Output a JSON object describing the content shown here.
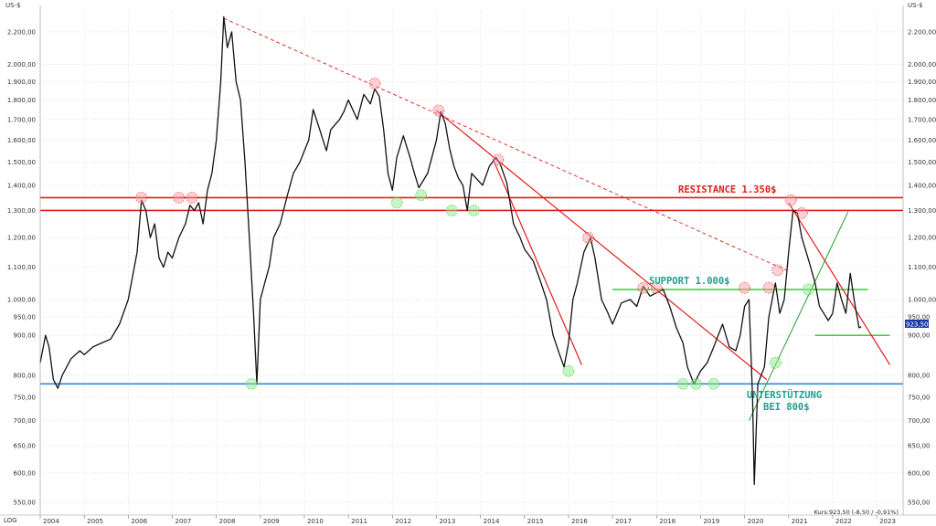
{
  "chart_data": {
    "type": "line",
    "scale": "log",
    "unit_left": "US-$",
    "unit_right": "US-$",
    "scale_label": "LOG",
    "grid": true,
    "ylim": [
      530,
      2340
    ],
    "xlim": [
      2004.0,
      2023.6
    ],
    "y_ticks": [
      {
        "v": 550,
        "label": "550,00"
      },
      {
        "v": 600,
        "label": "600,00"
      },
      {
        "v": 650,
        "label": "650,00"
      },
      {
        "v": 700,
        "label": "700,00"
      },
      {
        "v": 750,
        "label": "750,00"
      },
      {
        "v": 800,
        "label": "800,00"
      },
      {
        "v": 900,
        "label": "900,00"
      },
      {
        "v": 950,
        "label": "950,00"
      },
      {
        "v": 1000,
        "label": "1.000,00"
      },
      {
        "v": 1100,
        "label": "1.100,00"
      },
      {
        "v": 1200,
        "label": "1.200,00"
      },
      {
        "v": 1300,
        "label": "1.300,00"
      },
      {
        "v": 1400,
        "label": "1.400,00"
      },
      {
        "v": 1500,
        "label": "1.500,00"
      },
      {
        "v": 1600,
        "label": "1.600,00"
      },
      {
        "v": 1700,
        "label": "1.700,00"
      },
      {
        "v": 1800,
        "label": "1.800,00"
      },
      {
        "v": 1900,
        "label": "1.900,00"
      },
      {
        "v": 2000,
        "label": "2.000,00"
      },
      {
        "v": 2200,
        "label": "2.200,00"
      }
    ],
    "x_ticks": [
      "2004",
      "2005",
      "2006",
      "2007",
      "2008",
      "2009",
      "2010",
      "2011",
      "2012",
      "2013",
      "2014",
      "2015",
      "2016",
      "2017",
      "2018",
      "2019",
      "2020",
      "2021",
      "2022",
      "2023"
    ],
    "series": [
      {
        "points": [
          [
            2004.0,
            830
          ],
          [
            2004.12,
            900
          ],
          [
            2004.2,
            870
          ],
          [
            2004.3,
            790
          ],
          [
            2004.4,
            770
          ],
          [
            2004.5,
            800
          ],
          [
            2004.7,
            840
          ],
          [
            2004.9,
            860
          ],
          [
            2005.0,
            850
          ],
          [
            2005.2,
            870
          ],
          [
            2005.4,
            880
          ],
          [
            2005.6,
            890
          ],
          [
            2005.8,
            930
          ],
          [
            2006.0,
            1000
          ],
          [
            2006.2,
            1150
          ],
          [
            2006.3,
            1340
          ],
          [
            2006.4,
            1300
          ],
          [
            2006.5,
            1200
          ],
          [
            2006.6,
            1250
          ],
          [
            2006.7,
            1130
          ],
          [
            2006.8,
            1100
          ],
          [
            2006.9,
            1150
          ],
          [
            2007.0,
            1130
          ],
          [
            2007.15,
            1200
          ],
          [
            2007.3,
            1250
          ],
          [
            2007.4,
            1320
          ],
          [
            2007.5,
            1300
          ],
          [
            2007.6,
            1330
          ],
          [
            2007.7,
            1250
          ],
          [
            2007.8,
            1380
          ],
          [
            2007.9,
            1450
          ],
          [
            2008.0,
            1600
          ],
          [
            2008.1,
            1900
          ],
          [
            2008.17,
            2300
          ],
          [
            2008.25,
            2100
          ],
          [
            2008.35,
            2200
          ],
          [
            2008.45,
            1900
          ],
          [
            2008.55,
            1800
          ],
          [
            2008.65,
            1500
          ],
          [
            2008.75,
            1200
          ],
          [
            2008.85,
            950
          ],
          [
            2008.92,
            780
          ],
          [
            2009.0,
            1000
          ],
          [
            2009.1,
            1050
          ],
          [
            2009.2,
            1100
          ],
          [
            2009.3,
            1200
          ],
          [
            2009.45,
            1250
          ],
          [
            2009.6,
            1350
          ],
          [
            2009.75,
            1450
          ],
          [
            2009.9,
            1500
          ],
          [
            2010.0,
            1550
          ],
          [
            2010.1,
            1600
          ],
          [
            2010.2,
            1750
          ],
          [
            2010.35,
            1650
          ],
          [
            2010.5,
            1550
          ],
          [
            2010.6,
            1650
          ],
          [
            2010.8,
            1700
          ],
          [
            2010.9,
            1740
          ],
          [
            2011.0,
            1800
          ],
          [
            2011.2,
            1700
          ],
          [
            2011.35,
            1830
          ],
          [
            2011.5,
            1780
          ],
          [
            2011.6,
            1860
          ],
          [
            2011.7,
            1820
          ],
          [
            2011.8,
            1650
          ],
          [
            2011.9,
            1450
          ],
          [
            2012.0,
            1380
          ],
          [
            2012.1,
            1520
          ],
          [
            2012.25,
            1620
          ],
          [
            2012.4,
            1520
          ],
          [
            2012.5,
            1450
          ],
          [
            2012.6,
            1390
          ],
          [
            2012.8,
            1450
          ],
          [
            2013.0,
            1600
          ],
          [
            2013.1,
            1740
          ],
          [
            2013.2,
            1680
          ],
          [
            2013.3,
            1560
          ],
          [
            2013.4,
            1480
          ],
          [
            2013.5,
            1430
          ],
          [
            2013.6,
            1400
          ],
          [
            2013.7,
            1300
          ],
          [
            2013.8,
            1450
          ],
          [
            2013.95,
            1420
          ],
          [
            2014.05,
            1400
          ],
          [
            2014.2,
            1480
          ],
          [
            2014.35,
            1520
          ],
          [
            2014.45,
            1490
          ],
          [
            2014.6,
            1410
          ],
          [
            2014.75,
            1250
          ],
          [
            2014.9,
            1200
          ],
          [
            2015.0,
            1160
          ],
          [
            2015.2,
            1120
          ],
          [
            2015.35,
            1060
          ],
          [
            2015.5,
            1000
          ],
          [
            2015.65,
            900
          ],
          [
            2015.8,
            850
          ],
          [
            2015.9,
            820
          ],
          [
            2016.0,
            880
          ],
          [
            2016.1,
            1000
          ],
          [
            2016.2,
            1050
          ],
          [
            2016.35,
            1150
          ],
          [
            2016.5,
            1200
          ],
          [
            2016.6,
            1130
          ],
          [
            2016.75,
            1000
          ],
          [
            2016.9,
            960
          ],
          [
            2017.0,
            930
          ],
          [
            2017.2,
            990
          ],
          [
            2017.4,
            1000
          ],
          [
            2017.55,
            980
          ],
          [
            2017.7,
            1040
          ],
          [
            2017.85,
            1010
          ],
          [
            2018.0,
            1020
          ],
          [
            2018.15,
            1030
          ],
          [
            2018.3,
            980
          ],
          [
            2018.45,
            920
          ],
          [
            2018.6,
            880
          ],
          [
            2018.7,
            820
          ],
          [
            2018.85,
            780
          ],
          [
            2019.0,
            810
          ],
          [
            2019.15,
            830
          ],
          [
            2019.3,
            870
          ],
          [
            2019.4,
            900
          ],
          [
            2019.5,
            930
          ],
          [
            2019.65,
            870
          ],
          [
            2019.8,
            860
          ],
          [
            2019.9,
            900
          ],
          [
            2020.0,
            980
          ],
          [
            2020.1,
            1000
          ],
          [
            2020.18,
            750
          ],
          [
            2020.22,
            580
          ],
          [
            2020.3,
            780
          ],
          [
            2020.45,
            820
          ],
          [
            2020.55,
            950
          ],
          [
            2020.7,
            1050
          ],
          [
            2020.8,
            960
          ],
          [
            2020.9,
            1000
          ],
          [
            2021.0,
            1150
          ],
          [
            2021.1,
            1300
          ],
          [
            2021.2,
            1290
          ],
          [
            2021.3,
            1200
          ],
          [
            2021.4,
            1150
          ],
          [
            2021.5,
            1100
          ],
          [
            2021.6,
            1050
          ],
          [
            2021.7,
            980
          ],
          [
            2021.8,
            960
          ],
          [
            2021.9,
            940
          ],
          [
            2022.0,
            960
          ],
          [
            2022.1,
            1050
          ],
          [
            2022.2,
            1000
          ],
          [
            2022.3,
            960
          ],
          [
            2022.4,
            1080
          ],
          [
            2022.5,
            990
          ],
          [
            2022.6,
            920
          ],
          [
            2022.65,
            923.5
          ]
        ]
      }
    ],
    "last_price_tag": "923,50",
    "footer": "Kurs:923,50 (-8,50 / -0,91%)",
    "annotations": {
      "resistance_label": "RESISTANCE 1.350$",
      "support_label": "SUPPORT 1.000$",
      "unterstuetzung_line1": "UNTERSTÜTZUNG",
      "unterstuetzung_line2": "BEI 800$"
    },
    "colors": {
      "price": "#111111",
      "resistance": "#e31b1b",
      "support": "#1f9e8f",
      "green": "#22cc22",
      "blue": "#1f7fd6",
      "dark_green": "#2e9a2e",
      "tag": "#1a3aa8"
    }
  }
}
